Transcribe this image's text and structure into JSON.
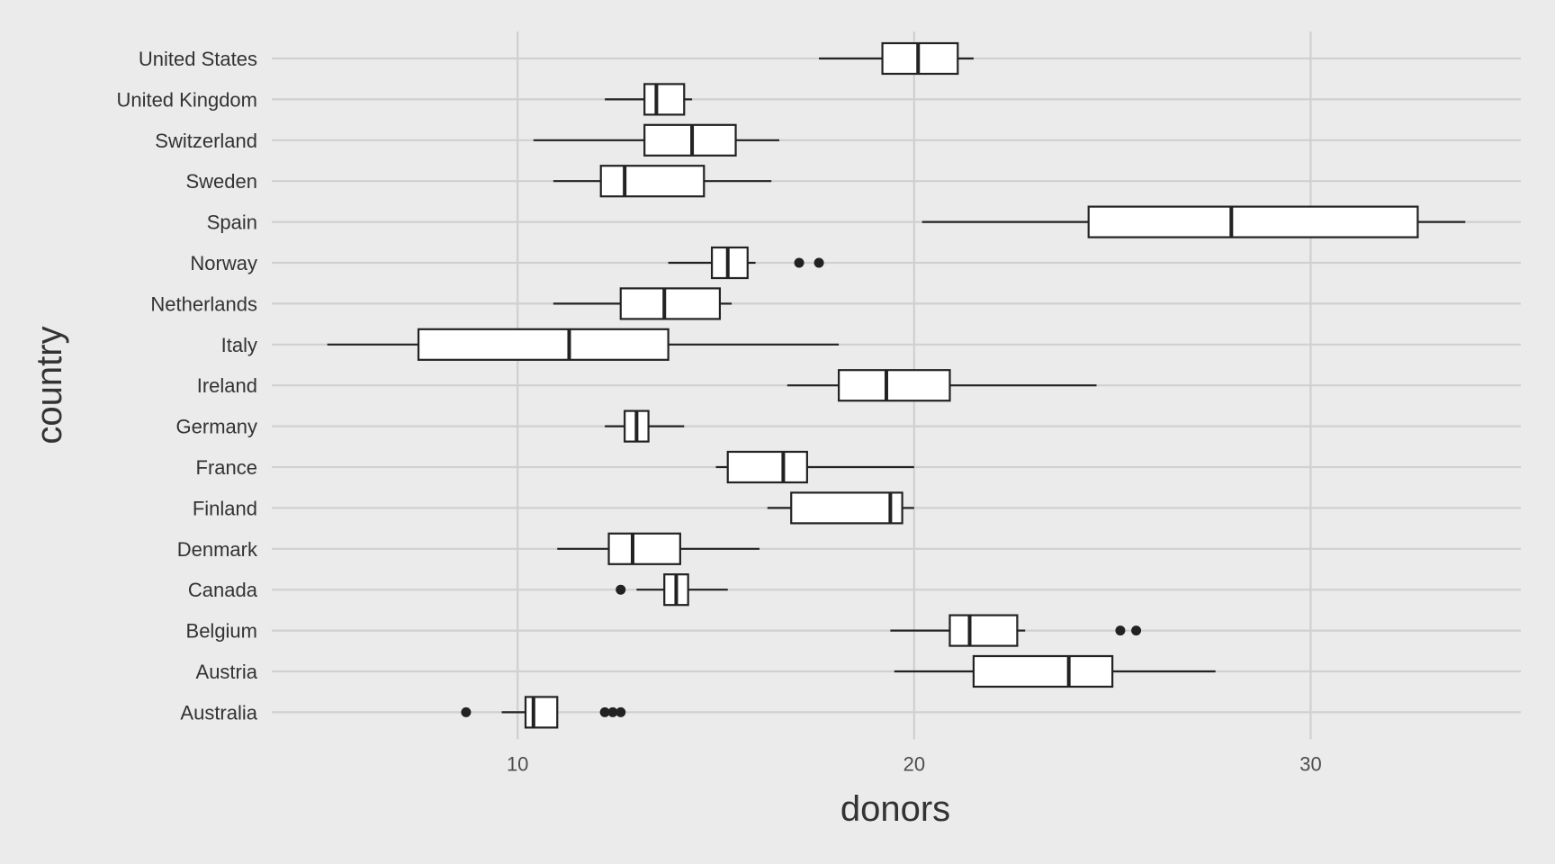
{
  "chart_data": {
    "type": "boxplot",
    "orientation": "horizontal",
    "xlabel": "donors",
    "ylabel": "country",
    "xlim": [
      3.8,
      35.3
    ],
    "xticks": [
      10,
      20,
      30
    ],
    "xtick_labels": [
      "10",
      "20",
      "30"
    ],
    "grid": true,
    "background": "#ebebeb",
    "grid_color": "#d0d0d0",
    "box_fill": "#ffffff",
    "line_color": "#222222",
    "categories": [
      "United States",
      "United Kingdom",
      "Switzerland",
      "Sweden",
      "Spain",
      "Norway",
      "Netherlands",
      "Italy",
      "Ireland",
      "Germany",
      "France",
      "Finland",
      "Denmark",
      "Canada",
      "Belgium",
      "Austria",
      "Australia"
    ],
    "boxes": [
      {
        "category": "United States",
        "whisker_low": 17.6,
        "q1": 19.2,
        "median": 20.1,
        "q3": 21.1,
        "whisker_high": 21.5,
        "outliers": []
      },
      {
        "category": "United Kingdom",
        "whisker_low": 12.2,
        "q1": 13.2,
        "median": 13.5,
        "q3": 14.2,
        "whisker_high": 14.4,
        "outliers": []
      },
      {
        "category": "Switzerland",
        "whisker_low": 10.4,
        "q1": 13.2,
        "median": 14.4,
        "q3": 15.5,
        "whisker_high": 16.6,
        "outliers": []
      },
      {
        "category": "Sweden",
        "whisker_low": 10.9,
        "q1": 12.1,
        "median": 12.7,
        "q3": 14.7,
        "whisker_high": 16.4,
        "outliers": []
      },
      {
        "category": "Spain",
        "whisker_low": 20.2,
        "q1": 24.4,
        "median": 28.0,
        "q3": 32.7,
        "whisker_high": 33.9,
        "outliers": []
      },
      {
        "category": "Norway",
        "whisker_low": 13.8,
        "q1": 14.9,
        "median": 15.3,
        "q3": 15.8,
        "whisker_high": 16.0,
        "outliers": [
          17.1,
          17.6
        ]
      },
      {
        "category": "Netherlands",
        "whisker_low": 10.9,
        "q1": 12.6,
        "median": 13.7,
        "q3": 15.1,
        "whisker_high": 15.4,
        "outliers": []
      },
      {
        "category": "Italy",
        "whisker_low": 5.2,
        "q1": 7.5,
        "median": 11.3,
        "q3": 13.8,
        "whisker_high": 18.1,
        "outliers": []
      },
      {
        "category": "Ireland",
        "whisker_low": 16.8,
        "q1": 18.1,
        "median": 19.3,
        "q3": 20.9,
        "whisker_high": 24.6,
        "outliers": []
      },
      {
        "category": "Germany",
        "whisker_low": 12.2,
        "q1": 12.7,
        "median": 13.0,
        "q3": 13.3,
        "whisker_high": 14.2,
        "outliers": []
      },
      {
        "category": "France",
        "whisker_low": 15.0,
        "q1": 15.3,
        "median": 16.7,
        "q3": 17.3,
        "whisker_high": 20.0,
        "outliers": []
      },
      {
        "category": "Finland",
        "whisker_low": 16.3,
        "q1": 16.9,
        "median": 19.4,
        "q3": 19.7,
        "whisker_high": 20.0,
        "outliers": []
      },
      {
        "category": "Denmark",
        "whisker_low": 11.0,
        "q1": 12.3,
        "median": 12.9,
        "q3": 14.1,
        "whisker_high": 16.1,
        "outliers": []
      },
      {
        "category": "Canada",
        "whisker_low": 13.0,
        "q1": 13.7,
        "median": 14.0,
        "q3": 14.3,
        "whisker_high": 15.3,
        "outliers": [
          12.6
        ]
      },
      {
        "category": "Belgium",
        "whisker_low": 19.4,
        "q1": 20.9,
        "median": 21.4,
        "q3": 22.6,
        "whisker_high": 22.8,
        "outliers": [
          25.2,
          25.6
        ]
      },
      {
        "category": "Austria",
        "whisker_low": 19.5,
        "q1": 21.5,
        "median": 23.9,
        "q3": 25.0,
        "whisker_high": 27.6,
        "outliers": []
      },
      {
        "category": "Australia",
        "whisker_low": 9.6,
        "q1": 10.2,
        "median": 10.4,
        "q3": 11.0,
        "whisker_high": 11.0,
        "outliers": [
          8.7,
          12.2,
          12.4,
          12.6
        ]
      }
    ]
  }
}
